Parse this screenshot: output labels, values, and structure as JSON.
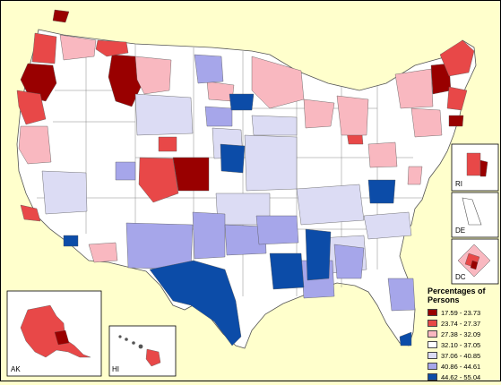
{
  "map": {
    "insets": {
      "alaska_label": "AK",
      "hawaii_label": "HI",
      "rhode_island_label": "RI",
      "delaware_label": "DE",
      "dc_label": "DC"
    }
  },
  "legend": {
    "title": "Percentages of Persons",
    "classes": [
      {
        "label": "17.59 - 23.73",
        "color": "#990000"
      },
      {
        "label": "23.74 - 27.37",
        "color": "#e84848"
      },
      {
        "label": "27.38 - 32.09",
        "color": "#f9b8c0"
      },
      {
        "label": "32.10 - 37.05",
        "color": "#ffffff"
      },
      {
        "label": "37.06 - 40.85",
        "color": "#dcdcf4"
      },
      {
        "label": "40.86 - 44.61",
        "color": "#a6a6ea"
      },
      {
        "label": "44.62 - 55.04",
        "color": "#0c4ca8"
      }
    ]
  }
}
